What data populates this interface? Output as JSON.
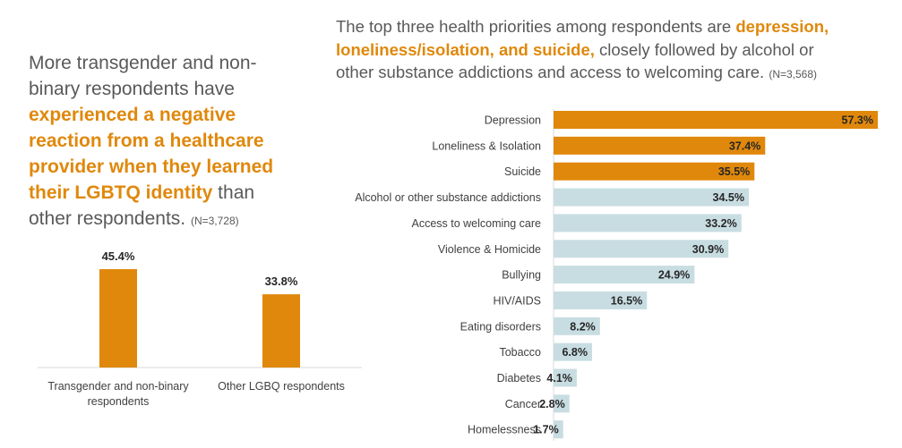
{
  "colors": {
    "accent": "#e0880c",
    "muted_bar": "#c8dde2",
    "text": "#595959",
    "label": "#404040"
  },
  "left_panel": {
    "text_before": "More transgender and non-binary respondents have ",
    "highlight": "experienced a negative reaction from a healthcare provider when they learned their LGBTQ identity",
    "text_after": " than other respondents. ",
    "n_label": "(N=3,728)"
  },
  "right_panel": {
    "text_before": "The top three health priorities among respondents are ",
    "highlight": "depression, loneliness/isolation, and suicide,",
    "text_after": " closely followed by alcohol or other substance addictions and access to welcoming care. ",
    "n_label": "(N=3,568)"
  },
  "chart_data": [
    {
      "type": "bar",
      "orientation": "vertical",
      "categories": [
        "Transgender and non-binary respondents",
        "Other LGBQ respondents"
      ],
      "values": [
        45.4,
        33.8
      ],
      "value_labels": [
        "45.4%",
        "33.8%"
      ],
      "ylim": [
        0,
        50
      ],
      "grid": false
    },
    {
      "type": "bar",
      "orientation": "horizontal",
      "categories": [
        "Depression",
        "Loneliness & Isolation",
        "Suicide",
        "Alcohol or other substance addictions",
        "Access to welcoming care",
        "Violence & Homicide",
        "Bullying",
        "HIV/AIDS",
        "Eating disorders",
        "Tobacco",
        "Diabetes",
        "Cancer",
        "Homelessness"
      ],
      "values": [
        57.3,
        37.4,
        35.5,
        34.5,
        33.2,
        30.9,
        24.9,
        16.5,
        8.2,
        6.8,
        4.1,
        2.8,
        1.7
      ],
      "value_labels": [
        "57.3%",
        "37.4%",
        "35.5%",
        "34.5%",
        "33.2%",
        "30.9%",
        "24.9%",
        "16.5%",
        "8.2%",
        "6.8%",
        "4.1%",
        "2.8%",
        "1.7%"
      ],
      "highlighted_top": 3,
      "xlim": [
        0,
        57.3
      ],
      "grid": false
    }
  ]
}
